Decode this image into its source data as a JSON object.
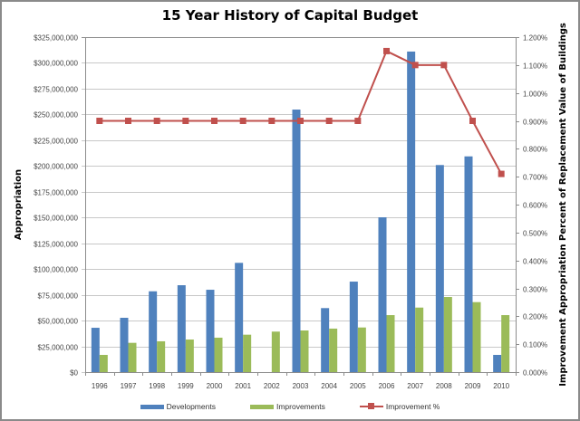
{
  "chart_data": {
    "type": "bar",
    "title": "15 Year History of Capital Budget",
    "xlabel": "",
    "ylabel": "Appropriation",
    "y2label": "Improvement Appropriation Percent of Replacement Value of Buildings",
    "categories": [
      "1996",
      "1997",
      "1998",
      "1999",
      "2000",
      "2001",
      "2002",
      "2003",
      "2004",
      "2005",
      "2006",
      "2007",
      "2008",
      "2009",
      "2010"
    ],
    "series": [
      {
        "name": "Developments",
        "type": "bar",
        "axis": "left",
        "color": "#4f81bd",
        "values": [
          43000000,
          52700000,
          78400000,
          84300000,
          79900000,
          106000000,
          0,
          254700000,
          62100000,
          87800000,
          150200000,
          311000000,
          200900000,
          209300000,
          16700000
        ]
      },
      {
        "name": "Improvements",
        "type": "bar",
        "axis": "left",
        "color": "#9bbb59",
        "values": [
          16700000,
          28400000,
          29900000,
          31600000,
          33400000,
          36300000,
          39300000,
          40400000,
          42200000,
          43300000,
          55300000,
          62600000,
          72900000,
          67900000,
          55300000
        ]
      },
      {
        "name": "Improvement %",
        "type": "line",
        "axis": "right",
        "color": "#c0504d",
        "values": [
          0.9,
          0.9,
          0.9,
          0.9,
          0.9,
          0.9,
          0.9,
          0.9,
          0.9,
          0.9,
          1.15,
          1.1,
          1.1,
          0.9,
          0.71
        ]
      }
    ],
    "ylim": [
      0,
      325000000
    ],
    "y2lim": [
      0,
      1.2
    ],
    "yticks": [
      "$0",
      "$25,000,000",
      "$50,000,000",
      "$75,000,000",
      "$100,000,000",
      "$125,000,000",
      "$150,000,000",
      "$175,000,000",
      "$200,000,000",
      "$225,000,000",
      "$250,000,000",
      "$275,000,000",
      "$300,000,000",
      "$325,000,000"
    ],
    "y2ticks": [
      "0.000%",
      "0.100%",
      "0.200%",
      "0.300%",
      "0.400%",
      "0.500%",
      "0.600%",
      "0.700%",
      "0.800%",
      "0.900%",
      "1.000%",
      "1.100%",
      "1.200%"
    ],
    "grid": true,
    "legend": "bottom"
  }
}
